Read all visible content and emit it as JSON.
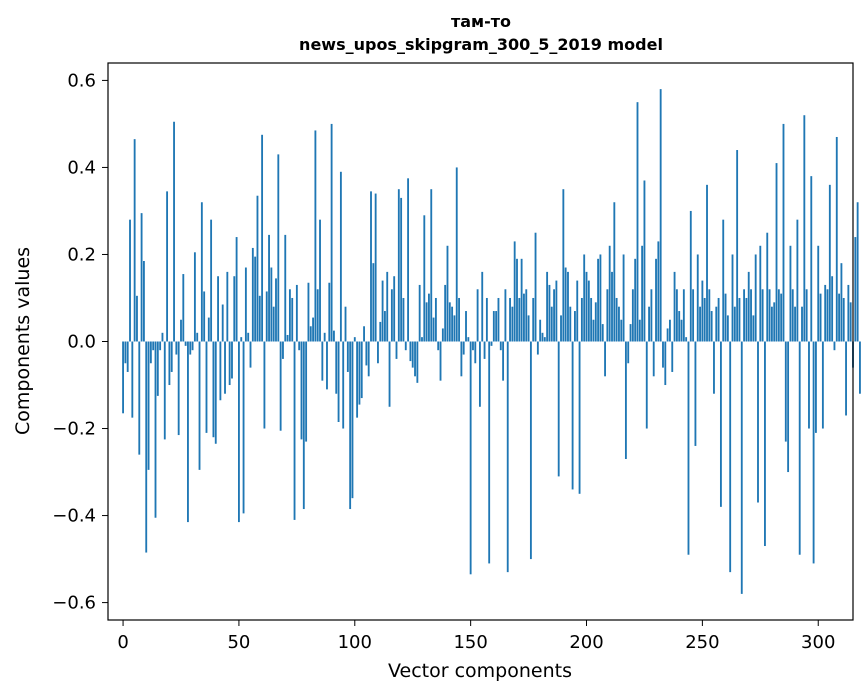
{
  "chart_data": {
    "type": "bar",
    "title_lines": [
      "там-то",
      "news_upos_skipgram_300_5_2019 model"
    ],
    "xlabel": "Vector components",
    "ylabel": "Components values",
    "xlim": [
      -6.5,
      315
    ],
    "ylim": [
      -0.64,
      0.64
    ],
    "xticks": [
      {
        "value": 0,
        "label": "0"
      },
      {
        "value": 50,
        "label": "50"
      },
      {
        "value": 100,
        "label": "100"
      },
      {
        "value": 150,
        "label": "150"
      },
      {
        "value": 200,
        "label": "200"
      },
      {
        "value": 250,
        "label": "250"
      },
      {
        "value": 300,
        "label": "300"
      }
    ],
    "yticks": [
      {
        "value": -0.6,
        "label": "−0.6"
      },
      {
        "value": -0.4,
        "label": "−0.4"
      },
      {
        "value": -0.2,
        "label": "−0.2"
      },
      {
        "value": 0.0,
        "label": "0.0"
      },
      {
        "value": 0.2,
        "label": "0.2"
      },
      {
        "value": 0.4,
        "label": "0.4"
      },
      {
        "value": 0.6,
        "label": "0.6"
      }
    ],
    "bar_color": "#1f77b4",
    "series": [
      {
        "name": "components",
        "values": [
          -0.165,
          -0.05,
          -0.07,
          0.28,
          -0.175,
          0.465,
          0.105,
          -0.26,
          0.295,
          0.185,
          -0.485,
          -0.295,
          -0.05,
          -0.02,
          -0.405,
          -0.125,
          -0.02,
          0.02,
          -0.225,
          0.345,
          -0.1,
          -0.07,
          0.505,
          -0.03,
          -0.215,
          0.05,
          0.155,
          -0.01,
          -0.415,
          -0.03,
          -0.02,
          0.205,
          0.02,
          -0.295,
          0.32,
          0.115,
          -0.21,
          0.055,
          0.28,
          -0.22,
          -0.235,
          0.15,
          -0.135,
          0.085,
          -0.12,
          0.16,
          -0.1,
          -0.085,
          0.15,
          0.24,
          -0.415,
          0.01,
          -0.395,
          0.17,
          0.02,
          -0.06,
          0.215,
          0.195,
          0.335,
          0.105,
          0.475,
          -0.2,
          0.115,
          0.245,
          0.17,
          0.08,
          0.145,
          0.43,
          -0.205,
          -0.04,
          0.245,
          0.015,
          0.12,
          0.1,
          -0.41,
          0.13,
          -0.02,
          -0.225,
          -0.385,
          -0.23,
          0.135,
          0.035,
          0.055,
          0.485,
          0.12,
          0.28,
          -0.09,
          0.02,
          -0.11,
          0.135,
          0.5,
          0.025,
          -0.12,
          -0.185,
          0.39,
          -0.2,
          0.08,
          -0.07,
          -0.385,
          -0.36,
          0.01,
          -0.175,
          -0.145,
          -0.13,
          0.035,
          -0.055,
          -0.08,
          0.345,
          0.18,
          0.34,
          -0.05,
          0.045,
          0.14,
          0.07,
          0.16,
          -0.15,
          0.12,
          0.15,
          -0.04,
          0.35,
          0.33,
          0.1,
          -0.02,
          0.375,
          -0.045,
          -0.06,
          -0.08,
          -0.095,
          0.13,
          0.01,
          0.29,
          0.09,
          0.11,
          0.35,
          0.055,
          0.1,
          -0.02,
          -0.09,
          0.03,
          0.13,
          0.22,
          0.09,
          0.08,
          0.06,
          0.4,
          0.1,
          -0.08,
          -0.03,
          0.07,
          0.01,
          -0.535,
          -0.02,
          -0.05,
          0.12,
          -0.15,
          0.16,
          -0.04,
          0.1,
          -0.51,
          -0.01,
          0.07,
          0.07,
          0.1,
          -0.02,
          -0.09,
          0.12,
          -0.53,
          0.1,
          0.08,
          0.23,
          0.19,
          0.1,
          0.19,
          0.11,
          0.12,
          0.06,
          -0.5,
          0.1,
          0.25,
          -0.03,
          0.05,
          0.02,
          0.01,
          0.16,
          0.13,
          0.08,
          0.12,
          0.14,
          -0.31,
          0.06,
          0.35,
          0.17,
          0.16,
          0.08,
          -0.34,
          0.07,
          0.14,
          -0.35,
          0.1,
          0.2,
          0.16,
          0.14,
          0.1,
          0.05,
          0.09,
          0.19,
          0.2,
          0.04,
          -0.08,
          0.12,
          0.22,
          0.16,
          0.32,
          0.1,
          0.08,
          0.05,
          0.2,
          -0.27,
          -0.05,
          0.04,
          0.12,
          0.19,
          0.55,
          0.05,
          0.22,
          0.37,
          -0.2,
          0.08,
          0.12,
          -0.08,
          0.19,
          0.23,
          0.58,
          -0.06,
          -0.1,
          0.03,
          0.05,
          -0.07,
          0.16,
          0.12,
          0.07,
          0.05,
          0.12,
          0.01,
          -0.49,
          0.3,
          0.12,
          -0.24,
          0.2,
          0.08,
          0.14,
          0.1,
          0.36,
          0.12,
          0.07,
          -0.12,
          0.08,
          0.1,
          -0.38,
          0.28,
          0.11,
          0.06,
          -0.53,
          0.2,
          0.08,
          0.44,
          0.1,
          -0.58,
          0.12,
          0.1,
          0.16,
          0.12,
          0.06,
          0.2,
          -0.37,
          0.22,
          0.12,
          -0.47,
          0.25,
          0.12,
          0.08,
          0.09,
          0.41,
          0.12,
          0.11,
          0.5,
          -0.23,
          -0.3,
          0.22,
          0.12,
          0.08,
          0.28,
          -0.49,
          0.08,
          0.52,
          0.12,
          -0.2,
          0.38,
          -0.51,
          -0.21,
          0.22,
          0.11,
          -0.2,
          0.13,
          0.12,
          0.36,
          0.15,
          -0.02,
          0.47,
          0.11,
          0.18,
          0.1,
          -0.17,
          0.13,
          0.09,
          -0.06,
          0.24,
          0.32,
          -0.12
        ]
      }
    ]
  }
}
